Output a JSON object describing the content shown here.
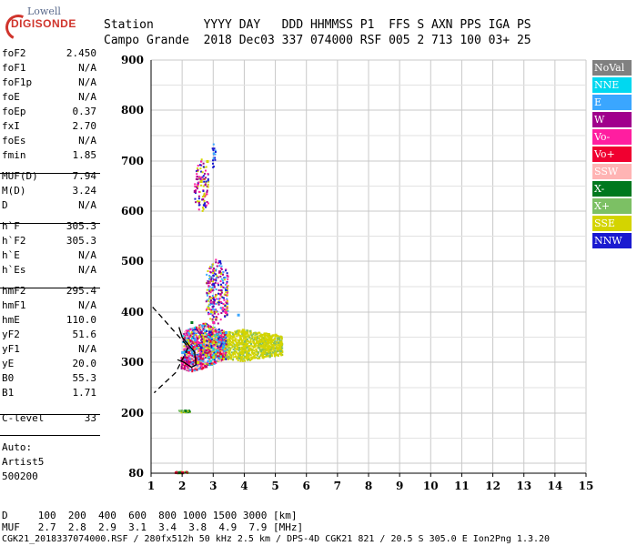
{
  "logo": {
    "top": "Lowell",
    "brand": "DIGISONDE"
  },
  "header": {
    "line1": "Station       YYYY DAY   DDD HHMMSS P1  FFS S AXN PPS IGA PS",
    "line2": "Campo Grande  2018 Dec03 337 074000 RSF 005 2 713 100 03+ 25"
  },
  "params": [
    {
      "name": "foF2",
      "value": "2.450"
    },
    {
      "name": "foF1",
      "value": "N/A"
    },
    {
      "name": "foF1p",
      "value": "N/A"
    },
    {
      "name": "foE",
      "value": "N/A"
    },
    {
      "name": "foEp",
      "value": "0.37"
    },
    {
      "name": "fxI",
      "value": "2.70"
    },
    {
      "name": "foEs",
      "value": "N/A"
    },
    {
      "name": "fmin",
      "value": "1.85"
    },
    {
      "name": "MUF(D)",
      "value": "7.94"
    },
    {
      "name": "M(D)",
      "value": "3.24"
    },
    {
      "name": "D",
      "value": "N/A"
    },
    {
      "name": "h`F",
      "value": "305.3"
    },
    {
      "name": "h`F2",
      "value": "305.3"
    },
    {
      "name": "h`E",
      "value": "N/A"
    },
    {
      "name": "h`Es",
      "value": "N/A"
    },
    {
      "name": "hmF2",
      "value": "295.4"
    },
    {
      "name": "hmF1",
      "value": "N/A"
    },
    {
      "name": "hmE",
      "value": "110.0"
    },
    {
      "name": "yF2",
      "value": "51.6"
    },
    {
      "name": "yF1",
      "value": "N/A"
    },
    {
      "name": "yE",
      "value": "20.0"
    },
    {
      "name": "B0",
      "value": "55.3"
    },
    {
      "name": "B1",
      "value": "1.71"
    },
    {
      "name": "C-level",
      "value": "33"
    }
  ],
  "auto": {
    "line1": "Auto:",
    "line2": "Artist5",
    "line3": "500200"
  },
  "footer": {
    "d_line": "D     100  200  400  600  800 1000 1500 3000 [km]",
    "muf_line": "MUF   2.7  2.8  2.9  3.1  3.4  3.8  4.9  7.9 [MHz]",
    "file_line": "CGK21_2018337074000.RSF / 280fx512h 50 kHz 2.5 km / DPS-4D CGK21 821 / 20.5 S 305.0 E Ion2Png 1.3.20"
  },
  "legend": [
    {
      "label": "NoVal",
      "bg": "#808080",
      "fg": "#ffffff"
    },
    {
      "label": "NNE",
      "bg": "#00d8f0",
      "fg": "#ffffff"
    },
    {
      "label": "E",
      "bg": "#3aa6ff",
      "fg": "#ffffff"
    },
    {
      "label": "W",
      "bg": "#a0008c",
      "fg": "#ffffff"
    },
    {
      "label": "Vo-",
      "bg": "#ff1ea0",
      "fg": "#ffffff"
    },
    {
      "label": "Vo+",
      "bg": "#f00030",
      "fg": "#ffffff"
    },
    {
      "label": "SSW",
      "bg": "#ffb4b4",
      "fg": "#ffffff"
    },
    {
      "label": "X-",
      "bg": "#00781e",
      "fg": "#ffffff"
    },
    {
      "label": "X+",
      "bg": "#7cc064",
      "fg": "#ffffff"
    },
    {
      "label": "SSE",
      "bg": "#d4d400",
      "fg": "#ffffff"
    },
    {
      "label": "NNW",
      "bg": "#1a1ad0",
      "fg": "#ffffff"
    }
  ],
  "chart_data": {
    "type": "scatter",
    "xlabel": "",
    "ylabel": "",
    "xlim": [
      1,
      15
    ],
    "ylim": [
      80,
      900
    ],
    "x_ticks": [
      "1",
      "2",
      "3",
      "4",
      "5",
      "6",
      "7",
      "8",
      "9",
      "10",
      "11",
      "12",
      "13",
      "14",
      "15"
    ],
    "y_ticks": [
      "80",
      "200",
      "300",
      "400",
      "500",
      "600",
      "700",
      "800",
      "900"
    ],
    "grid": true,
    "legend_placement": "right",
    "series": [
      {
        "name": "SSE",
        "color": "#d4d400",
        "points": [
          [
            2.5,
            300
          ],
          [
            3.0,
            310
          ],
          [
            3.5,
            320
          ],
          [
            4.0,
            330
          ],
          [
            4.5,
            345
          ],
          [
            5.0,
            355
          ],
          [
            3.0,
            340
          ],
          [
            4.0,
            360
          ],
          [
            2.8,
            700
          ],
          [
            2.6,
            660
          ]
        ]
      },
      {
        "name": "W",
        "color": "#a0008c",
        "points": [
          [
            2.2,
            330
          ],
          [
            2.6,
            360
          ],
          [
            3.0,
            420
          ],
          [
            3.2,
            480
          ],
          [
            2.4,
            640
          ]
        ]
      },
      {
        "name": "Vo-",
        "color": "#ff1ea0",
        "points": [
          [
            2.0,
            300
          ],
          [
            2.5,
            340
          ],
          [
            3.0,
            380
          ],
          [
            3.4,
            400
          ]
        ]
      },
      {
        "name": "E",
        "color": "#3aa6ff",
        "points": [
          [
            2.0,
            320
          ],
          [
            2.4,
            345
          ],
          [
            3.4,
            360
          ],
          [
            3.8,
            395
          ]
        ]
      },
      {
        "name": "NNW",
        "color": "#1a1ad0",
        "points": [
          [
            2.6,
            330
          ],
          [
            3.0,
            455
          ],
          [
            3.2,
            500
          ]
        ]
      },
      {
        "name": "X-",
        "color": "#00781e",
        "points": [
          [
            2.1,
            205
          ],
          [
            1.9,
            82
          ],
          [
            2.3,
            380
          ]
        ]
      },
      {
        "name": "Vo+",
        "color": "#f00030",
        "points": [
          [
            1.8,
            82
          ],
          [
            2.0,
            82
          ],
          [
            2.2,
            320
          ]
        ]
      }
    ],
    "profile_solid": [
      [
        1.85,
        305
      ],
      [
        2.05,
        300
      ],
      [
        2.3,
        290
      ],
      [
        2.45,
        295
      ],
      [
        2.4,
        320
      ],
      [
        2.0,
        350
      ],
      [
        1.9,
        370
      ]
    ],
    "profile_dashed": [
      [
        1.05,
        410
      ],
      [
        2.2,
        330
      ],
      [
        1.8,
        280
      ],
      [
        1.1,
        240
      ]
    ]
  }
}
